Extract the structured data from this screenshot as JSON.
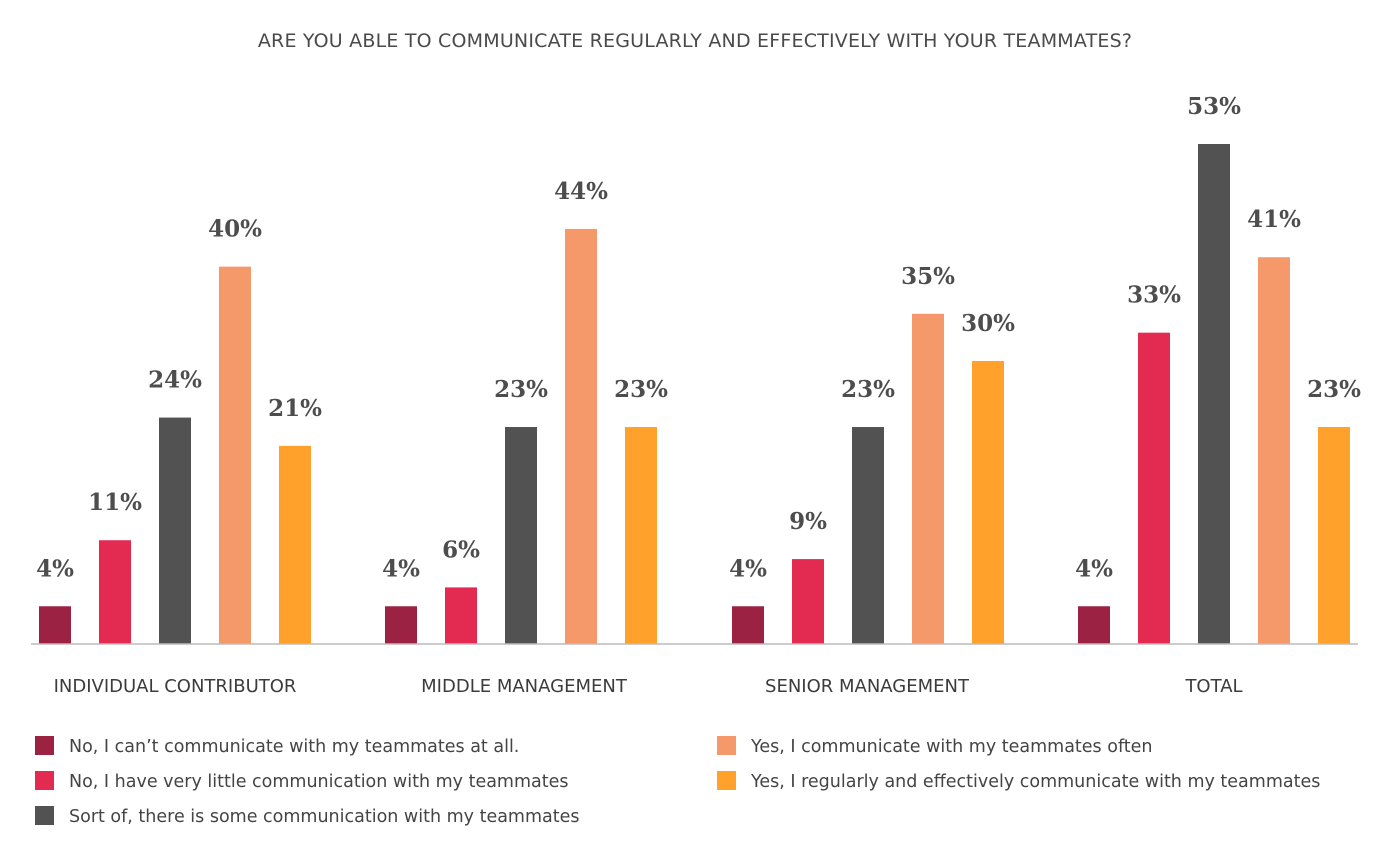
{
  "chart_data": {
    "type": "bar",
    "title": "ARE YOU ABLE TO COMMUNICATE REGULARLY AND EFFECTIVELY WITH YOUR TEAMMATES?",
    "categories": [
      "INDIVIDUAL CONTRIBUTOR",
      "MIDDLE MANAGEMENT",
      "SENIOR MANAGEMENT",
      "TOTAL"
    ],
    "series": [
      {
        "name": "No, I can’t communicate with my teammates at all.",
        "color": "#9b2242",
        "values": [
          4,
          4,
          4,
          4
        ]
      },
      {
        "name": "No, I have very little communication with my teammates",
        "color": "#e32b52",
        "values": [
          11,
          6,
          9,
          33
        ]
      },
      {
        "name": "Sort of, there is some communication with my teammates",
        "color": "#525252",
        "values": [
          24,
          23,
          23,
          53
        ]
      },
      {
        "name": "Yes, I communicate with my teammates often",
        "color": "#f5996b",
        "values": [
          40,
          44,
          35,
          41
        ]
      },
      {
        "name": "Yes, I regularly and effectively communicate with my teammates",
        "color": "#ffa12b",
        "values": [
          21,
          23,
          30,
          23
        ]
      }
    ],
    "value_suffix": "%",
    "ylim": [
      0,
      53
    ],
    "grid": false,
    "legend_position": "bottom"
  }
}
